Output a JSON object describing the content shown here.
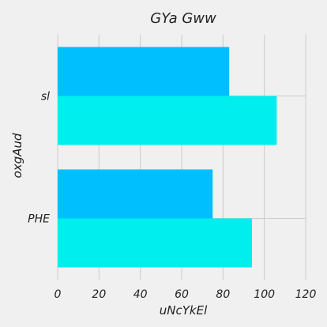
{
  "chart_data": {
    "type": "bar",
    "orientation": "horizontal",
    "title": "GYa Gww",
    "xlabel": "uNcYkEl",
    "ylabel": "oxgAud",
    "xlim": [
      0,
      120
    ],
    "xticks": [
      0,
      20,
      40,
      60,
      80,
      100,
      120
    ],
    "categories": [
      "PHE",
      "sl"
    ],
    "series": [
      {
        "color": "#00bfff",
        "values": [
          75,
          83
        ]
      },
      {
        "color": "#00eeee",
        "values": [
          94,
          106
        ]
      }
    ],
    "grid": true,
    "background": "#f0f0f0"
  }
}
